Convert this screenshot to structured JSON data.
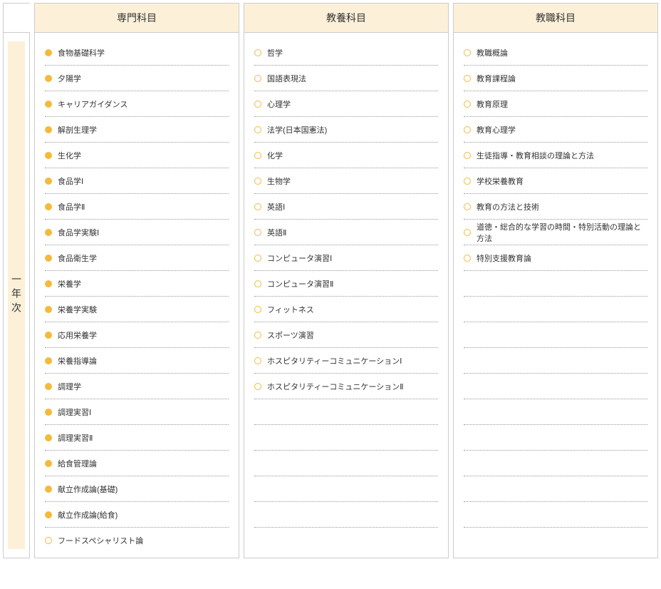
{
  "row_label": "一年次",
  "columns": [
    {
      "header": "専門科目"
    },
    {
      "header": "教養科目"
    },
    {
      "header": "教職科目"
    }
  ],
  "max_rows": 20,
  "col0": [
    {
      "label": "食物基礎科学",
      "filled": true
    },
    {
      "label": "夕陽学",
      "filled": true
    },
    {
      "label": "キャリアガイダンス",
      "filled": true
    },
    {
      "label": "解剖生理学",
      "filled": true
    },
    {
      "label": "生化学",
      "filled": true
    },
    {
      "label": "食品学Ⅰ",
      "filled": true
    },
    {
      "label": "食品学Ⅱ",
      "filled": true
    },
    {
      "label": "食品学実験Ⅰ",
      "filled": true
    },
    {
      "label": "食品衛生学",
      "filled": true
    },
    {
      "label": "栄養学",
      "filled": true
    },
    {
      "label": "栄養学実験",
      "filled": true
    },
    {
      "label": "応用栄養学",
      "filled": true
    },
    {
      "label": "栄養指導論",
      "filled": true
    },
    {
      "label": "調理学",
      "filled": true
    },
    {
      "label": "調理実習Ⅰ",
      "filled": true
    },
    {
      "label": "調理実習Ⅱ",
      "filled": true
    },
    {
      "label": "給食管理論",
      "filled": true
    },
    {
      "label": "献立作成論(基礎)",
      "filled": true
    },
    {
      "label": "献立作成論(給食)",
      "filled": true
    },
    {
      "label": "フードスペシャリスト論",
      "filled": false
    }
  ],
  "col1": [
    {
      "label": "哲学",
      "filled": false
    },
    {
      "label": "国語表現法",
      "filled": false
    },
    {
      "label": "心理学",
      "filled": false
    },
    {
      "label": "法学(日本国憲法)",
      "filled": false
    },
    {
      "label": "化学",
      "filled": false
    },
    {
      "label": "生物学",
      "filled": false
    },
    {
      "label": "英語Ⅰ",
      "filled": false
    },
    {
      "label": "英語Ⅱ",
      "filled": false
    },
    {
      "label": "コンピュータ演習Ⅰ",
      "filled": false
    },
    {
      "label": "コンピュータ演習Ⅱ",
      "filled": false
    },
    {
      "label": "フィットネス",
      "filled": false
    },
    {
      "label": "スポーツ演習",
      "filled": false
    },
    {
      "label": "ホスピタリティーコミュニケーションⅠ",
      "filled": false
    },
    {
      "label": "ホスピタリティーコミュニケーションⅡ",
      "filled": false
    }
  ],
  "col2": [
    {
      "label": "教職概論",
      "filled": false
    },
    {
      "label": "教育課程論",
      "filled": false
    },
    {
      "label": "教育原理",
      "filled": false
    },
    {
      "label": "教育心理学",
      "filled": false
    },
    {
      "label": "生徒指導・教育相談の理論と方法",
      "filled": false
    },
    {
      "label": "学校栄養教育",
      "filled": false
    },
    {
      "label": "教育の方法と技術",
      "filled": false
    },
    {
      "label": "道徳・総合的な学習の時間・特別活動の理論と方法",
      "filled": false
    },
    {
      "label": "特別支援教育論",
      "filled": false
    }
  ],
  "colors": {
    "header_bg": "#fdf0d9",
    "bullet_color": "#f6b93b",
    "border_color": "#cccccc",
    "dotted_color": "#999999",
    "text_color": "#333333"
  }
}
